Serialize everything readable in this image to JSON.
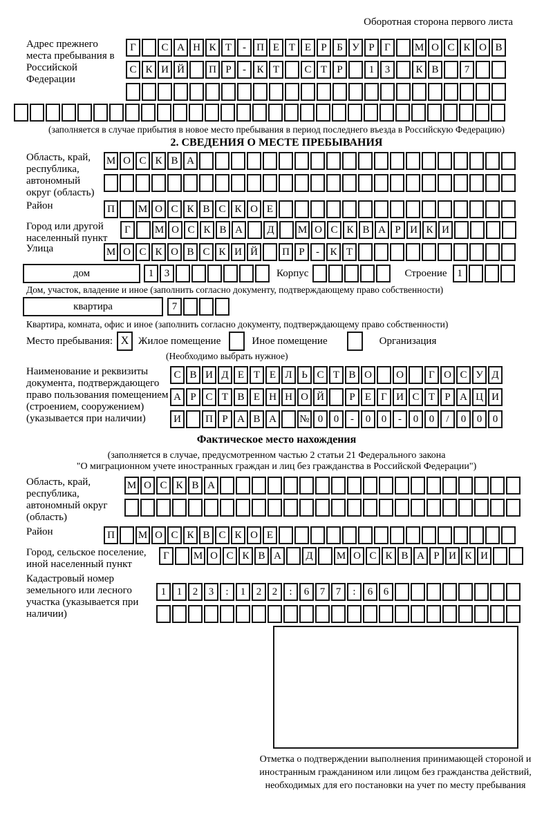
{
  "header": {
    "note": "Оборотная сторона первого листа"
  },
  "prev_address": {
    "label": "Адрес прежнего места пребывания в Российской Федерации",
    "row1": "Г САНКТ-ПЕТЕРБУРГ МОСКОВ",
    "row2": "СКИЙ ПР-КТ СТР 13 КВ 7",
    "row3": "",
    "row4": "",
    "note": "(заполняется в случае прибытия в новое место пребывания в период последнего въезда в Российскую Федерацию)"
  },
  "section2": {
    "title": "2. СВЕДЕНИЯ О МЕСТЕ ПРЕБЫВАНИЯ",
    "region": {
      "label": "Область, край, республика, автономный округ (область)",
      "row1": "МОСКВА",
      "row2": ""
    },
    "district": {
      "label": "Район",
      "row1": "П МОСКВСКОЕ"
    },
    "city": {
      "label": "Город или другой населенный пункт",
      "row1": "Г МОСКВА Д МОСКВАРИКИ"
    },
    "street": {
      "label": "Улица",
      "row1": "МОСКОВСКИЙ ПР-КТ"
    },
    "house": {
      "box_label": "дом",
      "cells": "13",
      "corpus_label": "Корпус",
      "corpus_cells": "",
      "building_label": "Строение",
      "building_cells": "1",
      "note": "Дом, участок, владение и иное (заполнить согласно документу, подтверждающему право собственности)"
    },
    "apartment": {
      "box_label": "квартира",
      "cells": "7",
      "note": "Квартира, комната, офис и иное (заполнить согласно документу, подтверждающему право собственности)"
    },
    "stay_type": {
      "label": "Место пребывания:",
      "options": [
        {
          "mark": "X",
          "label": "Жилое помещение"
        },
        {
          "mark": "",
          "label": "Иное помещение"
        },
        {
          "mark": "",
          "label": "Организация"
        }
      ],
      "note": "(Необходимо выбрать нужное)"
    },
    "document": {
      "label": "Наименование и реквизиты документа, подтверждающего право пользования помещением (строением, сооружением) (указывается при наличии)",
      "row1": "СВИДЕТЕЛЬСТВО О ГОСУД",
      "row2": "АРСТВЕННОЙ РЕГИСТРАЦИ",
      "row3": "И ПРАВА №00-00-00/000"
    }
  },
  "actual_location": {
    "title": "Фактическое место нахождения",
    "note1": "(заполняется в случае, предусмотренном частью 2 статьи 21 Федерального закона",
    "note2": "\"О миграционном учете иностранных граждан и лиц без гражданства в Российской Федерации\")",
    "region": {
      "label": "Область, край, республика, автономный округ (область)",
      "row1": "МОСКВА",
      "row2": ""
    },
    "district": {
      "label": "Район",
      "row1": "П МОСКВСКОЕ"
    },
    "city": {
      "label": "Город, сельское поселение, иной населенный пункт",
      "row1": "Г МОСКВА Д МОСКВАРИКИ"
    },
    "cadastral": {
      "label": "Кадастровый номер земельного или лесного участка (указывается при наличии)",
      "row1": "1123:122:677:66",
      "row2": ""
    }
  },
  "stamp": {
    "caption": "Отметка о подтверждении выполнения принимающей стороной и иностранным гражданином или лицом без гражданства действий, необходимых для его постановки на учет по месту пребывания"
  }
}
